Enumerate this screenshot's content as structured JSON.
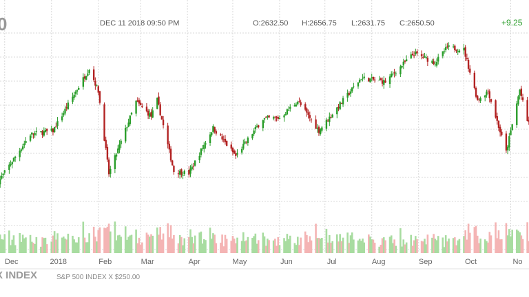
{
  "header": {
    "datetime": "DEC 11 2018 09:50 PM",
    "open": "O:2632.50",
    "high": "H:2656.75",
    "low": "L:2631.75",
    "close": "C:2650.50",
    "change": "+9.25",
    "last_digit": "0"
  },
  "footer": {
    "index_title": "X INDEX",
    "index_sub": "S&P 500 INDEX X $250.00"
  },
  "colors": {
    "up": "#2a9d2a",
    "down": "#b22222",
    "vol_up": "#a8dca0",
    "vol_down": "#f4b4b4",
    "grid": "#d8d8d8"
  },
  "chart_data": {
    "type": "candlestick",
    "x_ticks": [
      "Dec",
      "2018",
      "Feb",
      "Mar",
      "Apr",
      "May",
      "Jun",
      "Jul",
      "Aug",
      "Sep",
      "Oct",
      "No"
    ],
    "ylim": [
      2400,
      2970
    ],
    "grid": true,
    "anchors": [
      {
        "date": "2017-11-27",
        "close": 2560
      },
      {
        "date": "2017-12-18",
        "close": 2690
      },
      {
        "date": "2018-01-02",
        "close": 2700
      },
      {
        "date": "2018-01-26",
        "close": 2872
      },
      {
        "date": "2018-02-01",
        "close": 2810
      },
      {
        "date": "2018-02-08",
        "close": 2581
      },
      {
        "date": "2018-02-26",
        "close": 2780
      },
      {
        "date": "2018-03-08",
        "close": 2740
      },
      {
        "date": "2018-03-12",
        "close": 2785
      },
      {
        "date": "2018-03-23",
        "close": 2588
      },
      {
        "date": "2018-04-02",
        "close": 2582
      },
      {
        "date": "2018-04-18",
        "close": 2708
      },
      {
        "date": "2018-05-03",
        "close": 2630
      },
      {
        "date": "2018-05-21",
        "close": 2733
      },
      {
        "date": "2018-06-01",
        "close": 2735
      },
      {
        "date": "2018-06-13",
        "close": 2782
      },
      {
        "date": "2018-06-27",
        "close": 2700
      },
      {
        "date": "2018-07-25",
        "close": 2846
      },
      {
        "date": "2018-08-10",
        "close": 2835
      },
      {
        "date": "2018-08-29",
        "close": 2914
      },
      {
        "date": "2018-09-12",
        "close": 2888
      },
      {
        "date": "2018-09-20",
        "close": 2930
      },
      {
        "date": "2018-10-01",
        "close": 2924
      },
      {
        "date": "2018-10-10",
        "close": 2785
      },
      {
        "date": "2018-10-17",
        "close": 2810
      },
      {
        "date": "2018-10-29",
        "close": 2641
      },
      {
        "date": "2018-11-07",
        "close": 2813
      },
      {
        "date": "2018-11-12",
        "close": 2726
      }
    ]
  }
}
